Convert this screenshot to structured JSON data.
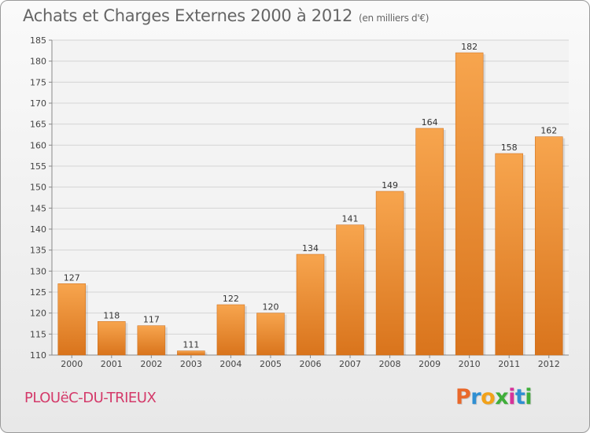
{
  "header": {
    "title": "Achats et Charges Externes 2000 à 2012",
    "subtitle": "(en milliers d'€)"
  },
  "footer": {
    "town": "PLOUëC-DU-TRIEUX",
    "logo_letters": [
      "P",
      "r",
      "o",
      "x",
      "i",
      "t",
      "i"
    ]
  },
  "colors": {
    "bar_light": "#f7a54e",
    "bar_dark": "#d9741c",
    "title": "#666666",
    "town": "#d43a6a"
  },
  "chart_data": {
    "type": "bar",
    "title": "Achats et Charges Externes 2000 à 2012",
    "subtitle": "(en milliers d'€)",
    "xlabel": "",
    "ylabel": "",
    "categories": [
      "2000",
      "2001",
      "2002",
      "2003",
      "2004",
      "2005",
      "2006",
      "2007",
      "2008",
      "2009",
      "2010",
      "2011",
      "2012"
    ],
    "values": [
      127,
      118,
      117,
      111,
      122,
      120,
      134,
      141,
      149,
      164,
      182,
      158,
      162
    ],
    "ylim": [
      110,
      185
    ],
    "yticks": [
      110,
      115,
      120,
      125,
      130,
      135,
      140,
      145,
      150,
      155,
      160,
      165,
      170,
      175,
      180,
      185
    ],
    "grid": true
  }
}
